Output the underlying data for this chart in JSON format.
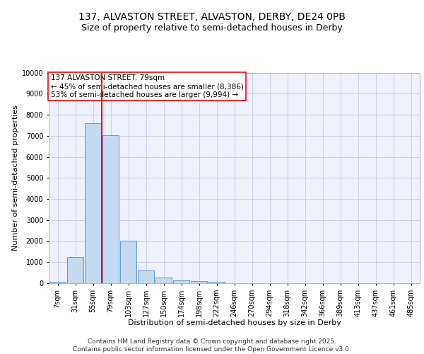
{
  "title_line1": "137, ALVASTON STREET, ALVASTON, DERBY, DE24 0PB",
  "title_line2": "Size of property relative to semi-detached houses in Derby",
  "xlabel": "Distribution of semi-detached houses by size in Derby",
  "ylabel": "Number of semi-detached properties",
  "footnote": "Contains HM Land Registry data © Crown copyright and database right 2025.\nContains public sector information licensed under the Open Government Licence v3.0.",
  "annotation_title": "137 ALVASTON STREET: 79sqm",
  "annotation_line1": "← 45% of semi-detached houses are smaller (8,386)",
  "annotation_line2": "53% of semi-detached houses are larger (9,994) →",
  "bar_color": "#c5d9f0",
  "bar_edge_color": "#5b9bd5",
  "red_line_index": 3,
  "categories": [
    "7sqm",
    "31sqm",
    "55sqm",
    "79sqm",
    "103sqm",
    "127sqm",
    "150sqm",
    "174sqm",
    "198sqm",
    "222sqm",
    "246sqm",
    "270sqm",
    "294sqm",
    "318sqm",
    "342sqm",
    "366sqm",
    "389sqm",
    "413sqm",
    "437sqm",
    "461sqm",
    "485sqm"
  ],
  "values": [
    80,
    1230,
    7600,
    7020,
    2020,
    600,
    270,
    130,
    110,
    80,
    0,
    0,
    0,
    0,
    0,
    0,
    0,
    0,
    0,
    0,
    0
  ],
  "ylim": [
    0,
    10000
  ],
  "yticks": [
    0,
    1000,
    2000,
    3000,
    4000,
    5000,
    6000,
    7000,
    8000,
    9000,
    10000
  ],
  "background_color": "#eef1fb",
  "grid_color": "#c8cee8",
  "title_fontsize": 10,
  "subtitle_fontsize": 9,
  "axis_label_fontsize": 8,
  "tick_fontsize": 7,
  "annotation_fontsize": 7.5,
  "footnote_fontsize": 6.5
}
